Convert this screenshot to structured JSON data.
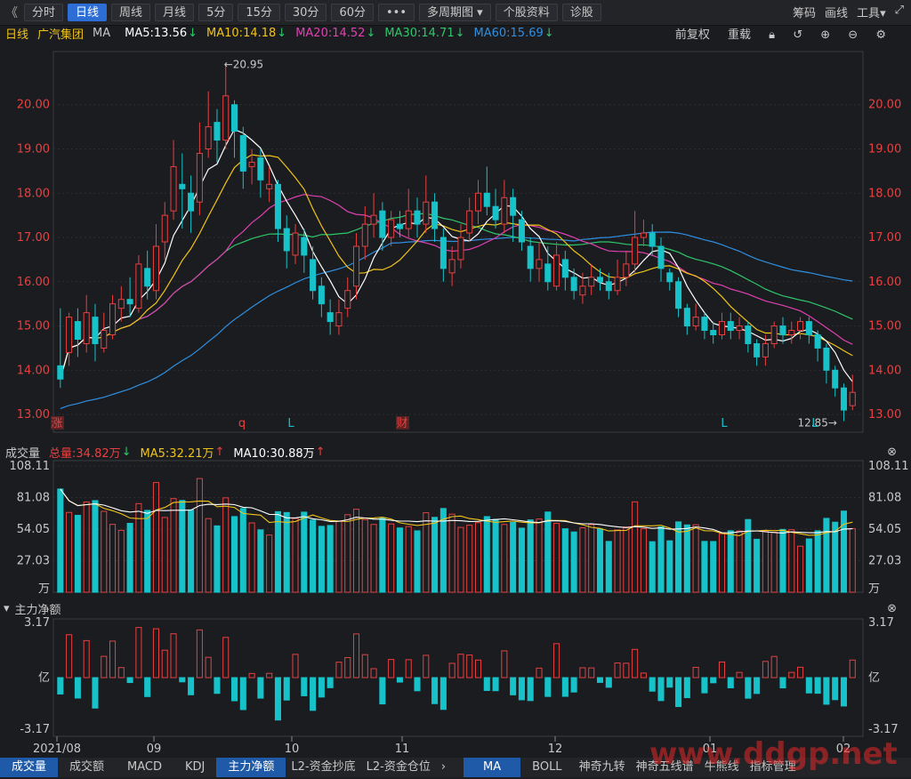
{
  "toolbar": {
    "back": "《",
    "tabs": [
      "分时",
      "日线",
      "周线",
      "月线",
      "5分",
      "15分",
      "30分",
      "60分"
    ],
    "active_index": 1,
    "more": "•••",
    "multi": "多周期图",
    "profile": "个股资料",
    "diag": "诊股",
    "right": [
      "筹码",
      "画线",
      "工具"
    ]
  },
  "kline": {
    "period": "日线",
    "stock": "广汽集团",
    "indicator": "MA",
    "ma": [
      {
        "label": "MA5:13.56",
        "color": "#ffffff"
      },
      {
        "label": "MA10:14.18",
        "color": "#f0c419"
      },
      {
        "label": "MA20:14.52",
        "color": "#e040b0"
      },
      {
        "label": "MA30:14.71",
        "color": "#2ec76a"
      },
      {
        "label": "MA60:15.69",
        "color": "#2f8fe0"
      }
    ],
    "right_labels": [
      "前复权",
      "重载"
    ],
    "y_ticks": [
      "20.00",
      "19.00",
      "18.00",
      "17.00",
      "16.00",
      "15.00",
      "14.00",
      "13.00"
    ],
    "high_label": "←20.95",
    "low_label": "12.85→",
    "markers": [
      "涨",
      "q",
      "L",
      "财",
      "L",
      "L"
    ]
  },
  "volume": {
    "title": "成交量",
    "total": "总量:34.82万",
    "ma5": "MA5:32.21万",
    "ma10": "MA10:30.88万",
    "y_ticks": [
      "108.11",
      "81.08",
      "54.05",
      "27.03",
      "万"
    ]
  },
  "capital": {
    "title": "主力净额",
    "y_ticks": [
      "3.17",
      "亿",
      "-3.17"
    ]
  },
  "x_labels": [
    "2021/08",
    "09",
    "10",
    "11",
    "12",
    "01",
    "02"
  ],
  "bottom_tabs_left": [
    "成交量",
    "成交额",
    "MACD",
    "KDJ",
    "主力净额",
    "L2-资金抄底",
    "L2-资金仓位"
  ],
  "bottom_tabs_right": [
    "MA",
    "BOLL",
    "神奇九转",
    "神奇五线谱",
    "牛熊线",
    "指标管理"
  ],
  "watermark": "www.ddgp.net",
  "chart_data": {
    "type": "candlestick",
    "title": "广汽集团 日线",
    "ylim": [
      12.6,
      21.2
    ],
    "candles": [
      [
        14.1,
        13.8,
        15.4,
        13.6
      ],
      [
        14.4,
        15.2,
        15.3,
        14.1
      ],
      [
        15.1,
        14.7,
        15.4,
        14.3
      ],
      [
        14.6,
        15.3,
        15.7,
        14.4
      ],
      [
        15.2,
        14.6,
        15.5,
        14.2
      ],
      [
        14.5,
        14.9,
        15.3,
        14.4
      ],
      [
        14.8,
        15.5,
        15.7,
        14.7
      ],
      [
        15.4,
        15.6,
        15.9,
        15.1
      ],
      [
        15.6,
        15.5,
        16.1,
        15.2
      ],
      [
        15.4,
        16.4,
        16.6,
        15.3
      ],
      [
        16.3,
        15.9,
        16.7,
        15.6
      ],
      [
        15.8,
        16.8,
        17.3,
        15.6
      ],
      [
        16.9,
        17.5,
        17.8,
        16.5
      ],
      [
        17.6,
        18.6,
        19.2,
        17.4
      ],
      [
        18.2,
        18.1,
        18.9,
        17.2
      ],
      [
        18.0,
        17.6,
        18.4,
        17.1
      ],
      [
        17.8,
        18.9,
        19.6,
        17.5
      ],
      [
        19.0,
        19.5,
        20.3,
        18.8
      ],
      [
        19.6,
        19.2,
        19.9,
        18.7
      ],
      [
        19.2,
        20.2,
        20.95,
        19.0
      ],
      [
        20.0,
        19.4,
        20.1,
        18.8
      ],
      [
        19.3,
        18.5,
        19.5,
        18.1
      ],
      [
        18.6,
        18.7,
        19.0,
        18.2
      ],
      [
        18.8,
        18.3,
        19.0,
        17.9
      ],
      [
        18.1,
        18.2,
        18.6,
        17.8
      ],
      [
        18.2,
        17.2,
        18.3,
        16.9
      ],
      [
        17.2,
        16.7,
        17.5,
        16.3
      ],
      [
        16.6,
        17.1,
        17.3,
        16.4
      ],
      [
        17.0,
        16.6,
        17.2,
        16.2
      ],
      [
        16.5,
        15.8,
        16.8,
        15.6
      ],
      [
        15.9,
        15.5,
        16.1,
        15.2
      ],
      [
        15.3,
        15.1,
        15.6,
        14.8
      ],
      [
        15.0,
        15.3,
        15.6,
        14.8
      ],
      [
        15.4,
        15.8,
        16.1,
        15.2
      ],
      [
        15.9,
        16.8,
        17.1,
        15.6
      ],
      [
        16.8,
        17.3,
        17.7,
        16.5
      ],
      [
        17.3,
        17.5,
        18.0,
        17.0
      ],
      [
        17.6,
        17.0,
        17.8,
        16.7
      ],
      [
        17.0,
        17.4,
        17.6,
        16.8
      ],
      [
        17.3,
        17.2,
        17.6,
        17.0
      ],
      [
        17.2,
        17.6,
        18.1,
        17.0
      ],
      [
        17.6,
        17.3,
        17.9,
        17.0
      ],
      [
        17.3,
        17.8,
        18.4,
        17.1
      ],
      [
        17.8,
        17.2,
        18.0,
        16.9
      ],
      [
        17.0,
        16.3,
        17.2,
        16.0
      ],
      [
        16.2,
        16.5,
        16.8,
        15.9
      ],
      [
        16.5,
        17.0,
        17.3,
        16.3
      ],
      [
        17.1,
        17.6,
        17.9,
        16.9
      ],
      [
        17.6,
        18.0,
        18.3,
        17.3
      ],
      [
        18.0,
        17.7,
        18.6,
        17.5
      ],
      [
        17.7,
        17.4,
        18.1,
        17.2
      ],
      [
        17.3,
        17.9,
        18.3,
        17.1
      ],
      [
        17.9,
        17.5,
        18.1,
        16.9
      ],
      [
        17.4,
        16.9,
        17.6,
        16.7
      ],
      [
        16.8,
        16.3,
        17.0,
        16.0
      ],
      [
        16.3,
        16.5,
        16.9,
        16.0
      ],
      [
        16.4,
        16.0,
        16.8,
        15.8
      ],
      [
        15.9,
        16.6,
        16.9,
        15.8
      ],
      [
        16.5,
        16.1,
        16.7,
        15.8
      ],
      [
        16.1,
        15.8,
        16.3,
        15.6
      ],
      [
        15.7,
        15.9,
        16.2,
        15.5
      ],
      [
        15.9,
        16.1,
        16.4,
        15.7
      ],
      [
        16.1,
        16.0,
        16.3,
        15.8
      ],
      [
        16.0,
        15.8,
        16.2,
        15.6
      ],
      [
        15.8,
        16.1,
        16.5,
        15.7
      ],
      [
        16.1,
        16.4,
        16.7,
        15.9
      ],
      [
        16.4,
        17.0,
        17.6,
        16.2
      ],
      [
        17.0,
        17.1,
        17.4,
        16.8
      ],
      [
        17.1,
        16.8,
        17.3,
        16.6
      ],
      [
        16.8,
        16.3,
        17.0,
        16.0
      ],
      [
        16.2,
        16.0,
        16.3,
        15.8
      ],
      [
        16.0,
        15.4,
        16.1,
        15.2
      ],
      [
        15.4,
        15.0,
        15.5,
        14.8
      ],
      [
        15.0,
        15.2,
        15.5,
        14.9
      ],
      [
        15.2,
        14.9,
        15.3,
        14.7
      ],
      [
        14.9,
        14.8,
        15.1,
        14.6
      ],
      [
        14.8,
        15.1,
        15.3,
        14.7
      ],
      [
        15.1,
        14.9,
        15.3,
        14.7
      ],
      [
        14.9,
        15.0,
        15.2,
        14.7
      ],
      [
        15.0,
        14.6,
        15.1,
        14.4
      ],
      [
        14.6,
        14.3,
        14.7,
        14.1
      ],
      [
        14.3,
        14.6,
        14.8,
        14.1
      ],
      [
        14.6,
        15.0,
        15.1,
        14.5
      ],
      [
        15.0,
        14.8,
        15.2,
        14.6
      ],
      [
        14.8,
        14.9,
        15.1,
        14.6
      ],
      [
        14.9,
        15.1,
        15.2,
        14.7
      ],
      [
        15.1,
        14.8,
        15.2,
        14.6
      ],
      [
        14.8,
        14.5,
        14.9,
        14.2
      ],
      [
        14.5,
        14.0,
        14.6,
        13.7
      ],
      [
        14.0,
        13.6,
        14.1,
        13.4
      ],
      [
        13.6,
        13.1,
        13.7,
        12.85
      ],
      [
        13.2,
        13.5,
        13.9,
        13.1
      ]
    ]
  }
}
